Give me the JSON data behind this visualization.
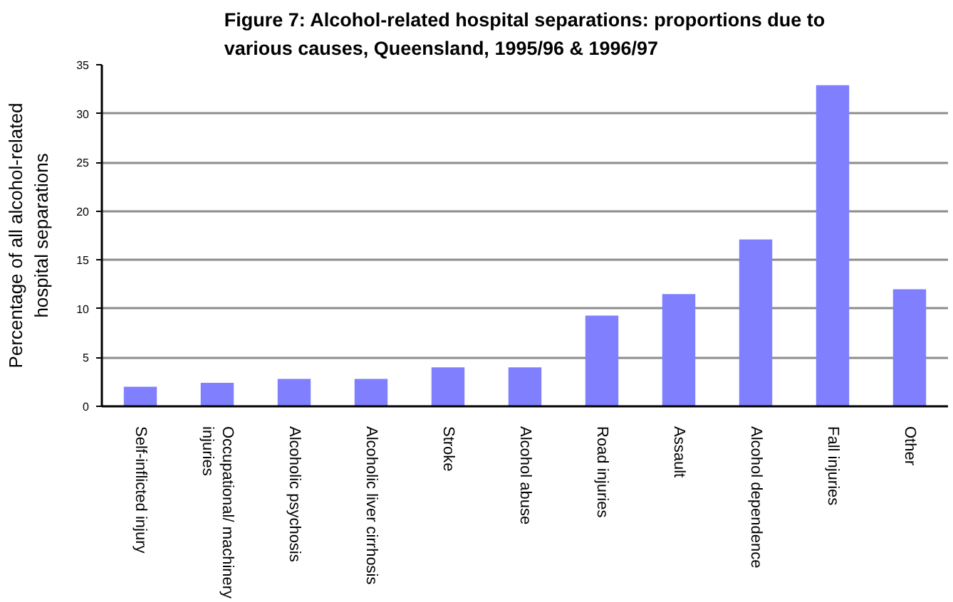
{
  "chart_data": {
    "type": "bar",
    "title": "Figure 7: Alcohol-related hospital separations: proportions due to various causes, Queensland, 1995/96 & 1996/97",
    "ylabel": "Percentage of all alcohol-related hospital separations",
    "categories": [
      "Self-inflicted injury",
      "Occupational/ machinery injuries",
      "Alcoholic psychosis",
      "Alcoholic liver cirrhosis",
      "Stroke",
      "Alcohol abuse",
      "Road injuries",
      "Assault",
      "Alcohol dependence",
      "Fall injuries",
      "Other"
    ],
    "values": [
      2.0,
      2.4,
      2.8,
      2.8,
      4.0,
      4.0,
      9.3,
      11.5,
      17.1,
      32.9,
      12.0
    ],
    "color": "#8080ff",
    "ylim": [
      0,
      35
    ],
    "yticks": [
      0,
      5,
      10,
      15,
      20,
      25,
      30,
      35
    ],
    "grid": "y"
  }
}
